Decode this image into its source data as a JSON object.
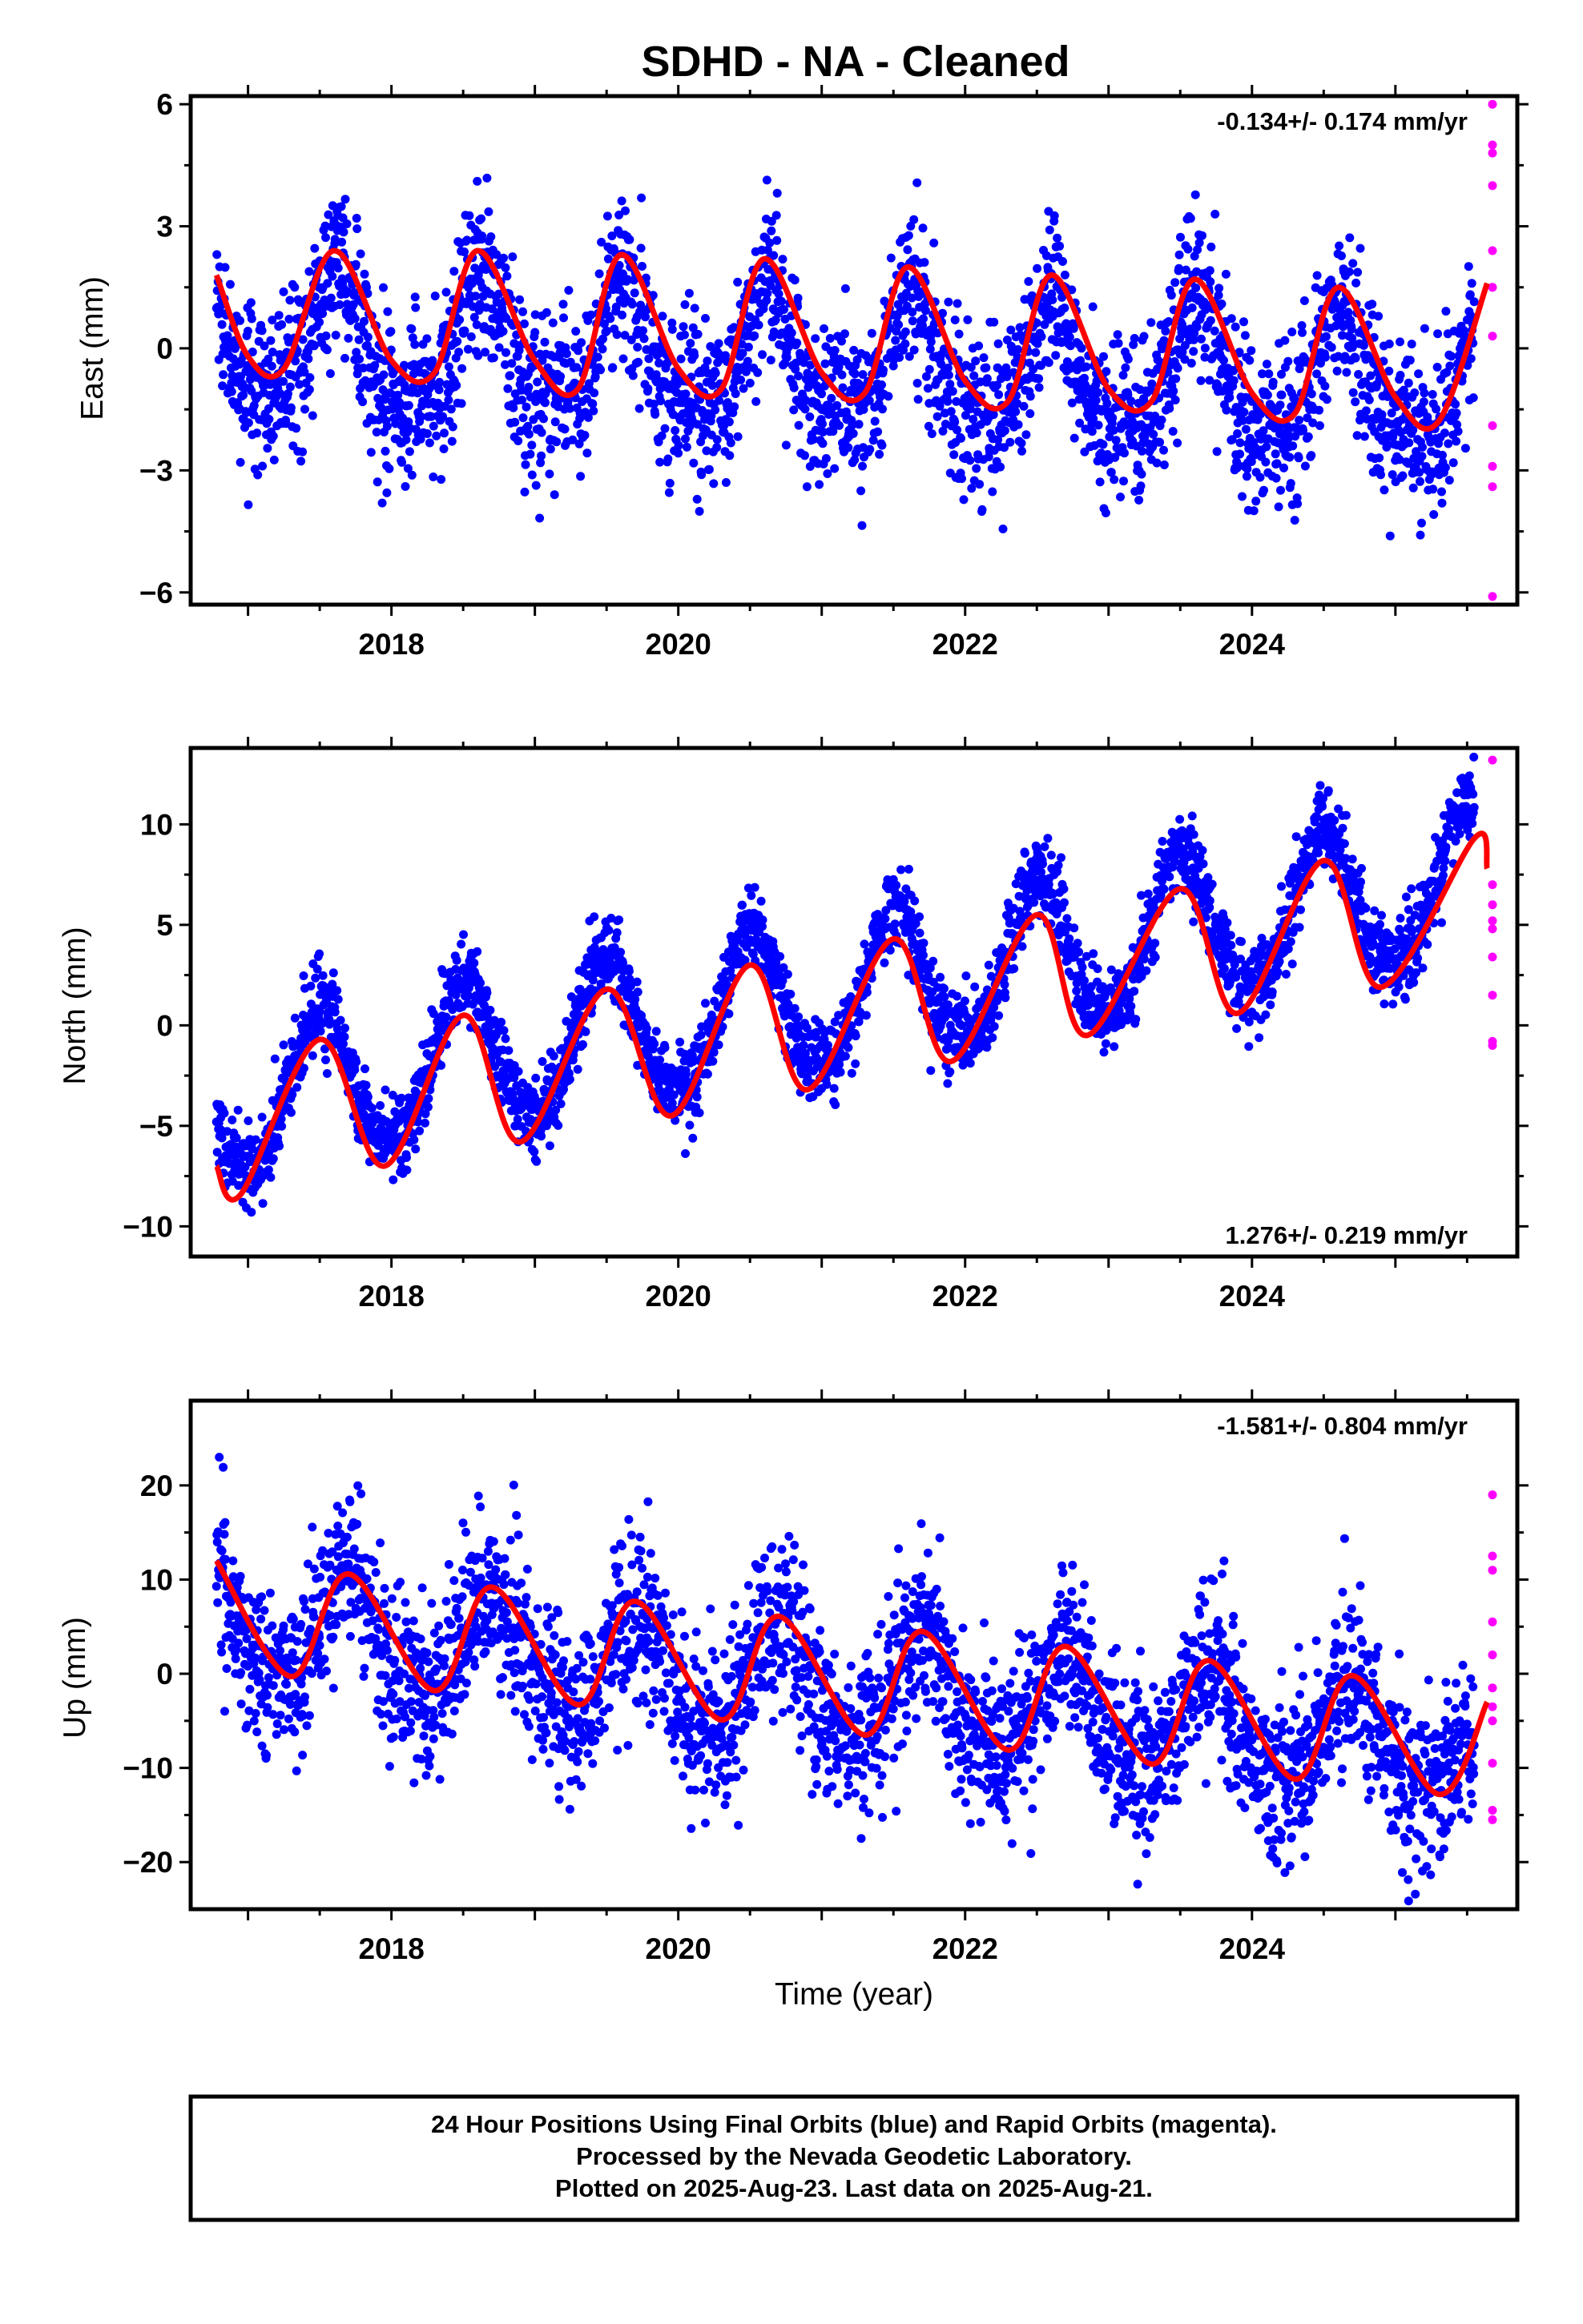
{
  "title": "SDHD  - NA - Cleaned",
  "xlabel": "Time (year)",
  "footer": {
    "line1": "24 Hour Positions Using Final Orbits (blue) and Rapid Orbits (magenta).",
    "line2": "Processed by the Nevada Geodetic Laboratory.",
    "line3": "Plotted on 2025-Aug-23. Last data on 2025-Aug-21."
  },
  "colors": {
    "final_orbits": "#0000ff",
    "rapid_orbits": "#ff00ff",
    "model_fit": "#ff0000"
  },
  "chart_data": [
    {
      "type": "scatter",
      "component": "east",
      "ylabel": "East (mm)",
      "rate_text": "-0.134+/- 0.174 mm/yr",
      "xlim": [
        2016.6,
        2025.85
      ],
      "ylim": [
        -6.3,
        6.2
      ],
      "yticks": [
        -6,
        -3,
        0,
        3,
        6
      ],
      "ytick_labels": [
        "−6",
        "−3",
        "0",
        "3",
        "6"
      ],
      "xticks": [
        2018,
        2020,
        2022,
        2024
      ],
      "xtick_labels": [
        "2018",
        "2020",
        "2022",
        "2024"
      ],
      "data_start": 2016.78,
      "data_end": 2025.64,
      "final_orbits_end": 2025.55,
      "model": {
        "offset": 0.2,
        "trend": -0.134,
        "annual_amp": 1.5,
        "annual_peak": 0.62,
        "semiannual_amp": 0.5,
        "semiannual_peak": 0.62,
        "noise_sd": 1.0
      },
      "series": [
        {
          "name": "Final Orbits",
          "color": "#0000ff"
        },
        {
          "name": "Rapid Orbits",
          "color": "#ff00ff"
        },
        {
          "name": "Model Fit",
          "color": "#ff0000"
        }
      ],
      "rapid_orbits_values": [
        6.0,
        5.0,
        4.8,
        4.0,
        2.4,
        1.5,
        0.3,
        -1.9,
        -2.9,
        -3.4,
        -6.1
      ],
      "model_fit_points": [
        [
          2016.78,
          1.8
        ],
        [
          2017.0,
          -0.2
        ],
        [
          2017.25,
          -0.5
        ],
        [
          2017.6,
          2.4
        ],
        [
          2018.0,
          -0.3
        ],
        [
          2018.3,
          -0.6
        ],
        [
          2018.6,
          2.4
        ],
        [
          2019.0,
          -0.3
        ],
        [
          2019.3,
          -1.0
        ],
        [
          2019.6,
          2.3
        ],
        [
          2020.0,
          -0.5
        ],
        [
          2020.3,
          -1.0
        ],
        [
          2020.6,
          2.2
        ],
        [
          2021.0,
          -0.6
        ],
        [
          2021.3,
          -1.1
        ],
        [
          2021.6,
          2.0
        ],
        [
          2022.0,
          -0.8
        ],
        [
          2022.3,
          -1.3
        ],
        [
          2022.6,
          1.8
        ],
        [
          2023.0,
          -1.0
        ],
        [
          2023.3,
          -1.3
        ],
        [
          2023.6,
          1.7
        ],
        [
          2024.0,
          -1.1
        ],
        [
          2024.3,
          -1.6
        ],
        [
          2024.6,
          1.5
        ],
        [
          2025.0,
          -1.2
        ],
        [
          2025.3,
          -1.8
        ],
        [
          2025.64,
          1.6
        ]
      ]
    },
    {
      "type": "scatter",
      "component": "north",
      "ylabel": "North (mm)",
      "rate_text": "1.276+/- 0.219 mm/yr",
      "xlim": [
        2016.6,
        2025.85
      ],
      "ylim": [
        -11.5,
        13.8
      ],
      "yticks": [
        -10,
        -5,
        0,
        5,
        10
      ],
      "ytick_labels": [
        "−10",
        "−5",
        "0",
        "5",
        "10"
      ],
      "xticks": [
        2018,
        2020,
        2022,
        2024
      ],
      "xtick_labels": [
        "2018",
        "2020",
        "2022",
        "2024"
      ],
      "data_start": 2016.78,
      "data_end": 2025.64,
      "final_orbits_end": 2025.55,
      "model": {
        "offset": -4.0,
        "trend": 1.276,
        "annual_amp": 3.7,
        "annual_peak": 0.5,
        "semiannual_amp": 0.4,
        "semiannual_peak": 0.5,
        "noise_sd": 1.0
      },
      "series": [
        {
          "name": "Final Orbits",
          "color": "#0000ff"
        },
        {
          "name": "Rapid Orbits",
          "color": "#ff00ff"
        },
        {
          "name": "Model Fit",
          "color": "#ff0000"
        }
      ],
      "rapid_orbits_values": [
        13.2,
        7.0,
        6.0,
        5.2,
        4.8,
        3.4,
        1.5,
        -0.8,
        -1.0
      ],
      "model_fit_points": [
        [
          2016.78,
          -7.0
        ],
        [
          2016.95,
          -8.4
        ],
        [
          2017.5,
          -0.7
        ],
        [
          2017.95,
          -7.0
        ],
        [
          2018.5,
          0.5
        ],
        [
          2018.9,
          -5.8
        ],
        [
          2019.5,
          1.8
        ],
        [
          2019.95,
          -4.5
        ],
        [
          2020.5,
          3.0
        ],
        [
          2020.9,
          -3.2
        ],
        [
          2021.5,
          4.3
        ],
        [
          2021.9,
          -1.8
        ],
        [
          2022.5,
          5.5
        ],
        [
          2022.85,
          -0.5
        ],
        [
          2023.5,
          6.8
        ],
        [
          2023.9,
          0.6
        ],
        [
          2024.5,
          8.2
        ],
        [
          2024.9,
          1.9
        ],
        [
          2025.55,
          9.3
        ],
        [
          2025.64,
          7.8
        ]
      ]
    },
    {
      "type": "scatter",
      "component": "up",
      "ylabel": "Up (mm)",
      "rate_text": "-1.581+/- 0.804 mm/yr",
      "xlim": [
        2016.6,
        2025.85
      ],
      "ylim": [
        -25,
        29
      ],
      "yticks": [
        -20,
        -10,
        0,
        10,
        20
      ],
      "ytick_labels": [
        "−20",
        "−10",
        "0",
        "10",
        "20"
      ],
      "xticks": [
        2018,
        2020,
        2022,
        2024
      ],
      "xtick_labels": [
        "2018",
        "2020",
        "2022",
        "2024"
      ],
      "data_start": 2016.78,
      "data_end": 2025.64,
      "final_orbits_end": 2025.55,
      "model": {
        "offset": 5.5,
        "trend": -1.581,
        "annual_amp": 5.8,
        "annual_peak": 0.7,
        "semiannual_amp": 0.8,
        "semiannual_peak": 0.7,
        "noise_sd": 4.3
      },
      "series": [
        {
          "name": "Final Orbits",
          "color": "#0000ff"
        },
        {
          "name": "Rapid Orbits",
          "color": "#ff00ff"
        },
        {
          "name": "Model Fit",
          "color": "#ff0000"
        }
      ],
      "rapid_orbits_values": [
        19.0,
        12.5,
        11.0,
        5.5,
        2.0,
        -1.5,
        -3.5,
        -5.0,
        -9.5,
        -14.5,
        -15.5
      ],
      "model_fit_points": [
        [
          2016.78,
          12.0
        ],
        [
          2017.3,
          -0.3
        ],
        [
          2017.7,
          10.6
        ],
        [
          2018.3,
          -1.8
        ],
        [
          2018.7,
          9.2
        ],
        [
          2019.3,
          -3.3
        ],
        [
          2019.7,
          7.7
        ],
        [
          2020.3,
          -4.9
        ],
        [
          2020.7,
          6.1
        ],
        [
          2021.3,
          -6.5
        ],
        [
          2021.7,
          4.5
        ],
        [
          2022.3,
          -8.1
        ],
        [
          2022.7,
          2.9
        ],
        [
          2023.3,
          -9.6
        ],
        [
          2023.7,
          1.4
        ],
        [
          2024.3,
          -11.2
        ],
        [
          2024.7,
          -0.2
        ],
        [
          2025.3,
          -12.8
        ],
        [
          2025.64,
          -3.0
        ]
      ]
    }
  ]
}
